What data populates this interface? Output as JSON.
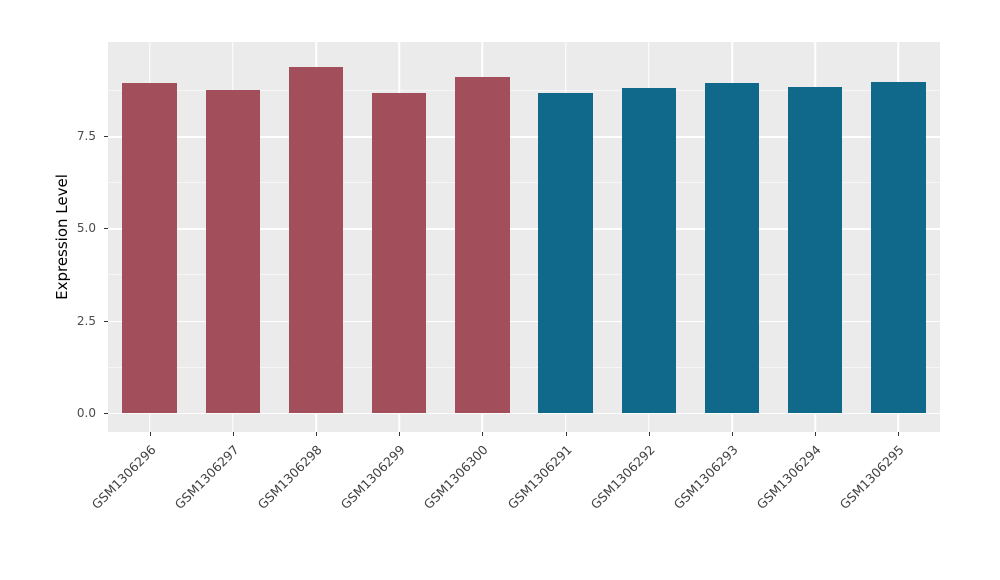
{
  "chart_data": {
    "type": "bar",
    "title": "",
    "xlabel": "",
    "ylabel": "Expression Level",
    "categories": [
      "GSM1306296",
      "GSM1306297",
      "GSM1306298",
      "GSM1306299",
      "GSM1306300",
      "GSM1306291",
      "GSM1306292",
      "GSM1306293",
      "GSM1306294",
      "GSM1306295"
    ],
    "values": [
      8.93,
      8.74,
      9.37,
      8.68,
      9.09,
      8.68,
      8.79,
      8.93,
      8.82,
      8.96
    ],
    "bar_colors": [
      "#A34E5B",
      "#A34E5B",
      "#A34E5B",
      "#A34E5B",
      "#A34E5B",
      "#10688A",
      "#10688A",
      "#10688A",
      "#10688A",
      "#10688A"
    ],
    "ylim": [
      -0.52,
      10.05
    ],
    "yticks": [
      {
        "value": 0,
        "label": "0.0"
      },
      {
        "value": 2.5,
        "label": "2.5"
      },
      {
        "value": 5,
        "label": "5.0"
      },
      {
        "value": 7.5,
        "label": "7.5"
      }
    ],
    "yticks_minor": [
      1.25,
      3.75,
      6.25,
      8.75
    ],
    "grid": true,
    "legend": "none",
    "panel_bg": "#EBEBEB",
    "grid_color": "#FFFFFF",
    "axis_text_color": "#4D4D4D",
    "axis_title_color": "#000000",
    "bar_rel_width": 0.655,
    "x_label_rotation_deg": 45
  }
}
